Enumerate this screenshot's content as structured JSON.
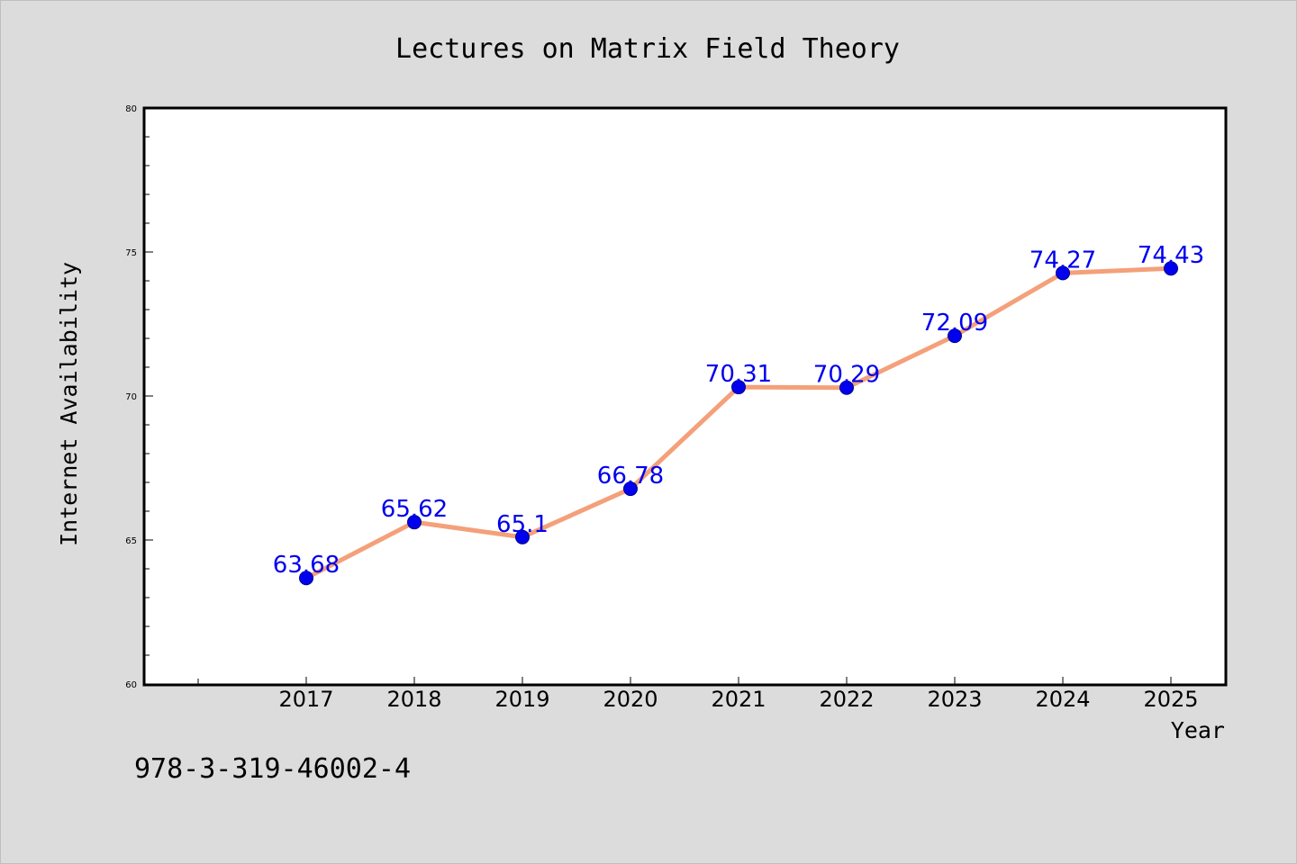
{
  "chart_data": {
    "type": "line",
    "title": "Lectures on Matrix Field Theory",
    "xlabel": "Year",
    "ylabel": "Internet Availability",
    "categories": [
      "2017",
      "2018",
      "2019",
      "2020",
      "2021",
      "2022",
      "2023",
      "2024",
      "2025"
    ],
    "series": [
      {
        "values": [
          63.68,
          65.62,
          65.1,
          66.78,
          70.31,
          70.29,
          72.09,
          74.27,
          74.43
        ],
        "data_labels": [
          "63.68",
          "65.62",
          "65.1",
          "66.78",
          "70.31",
          "70.29",
          "72.09",
          "74.27",
          "74.43"
        ]
      }
    ],
    "ylim": [
      60,
      80
    ],
    "yticks": [
      60,
      65,
      70,
      75,
      80
    ],
    "ytick_labels": [
      "60",
      "65",
      "70",
      "75",
      "80"
    ],
    "grid": false,
    "legend": "none",
    "colors": {
      "line": "#f4a07a",
      "marker": "#0000ee",
      "marker_edge": "#00008b",
      "data_label": "#0000ee",
      "background": "#dcdcdc",
      "plot_background": "#ffffff"
    }
  },
  "footer": {
    "isbn": "978-3-319-46002-4"
  }
}
